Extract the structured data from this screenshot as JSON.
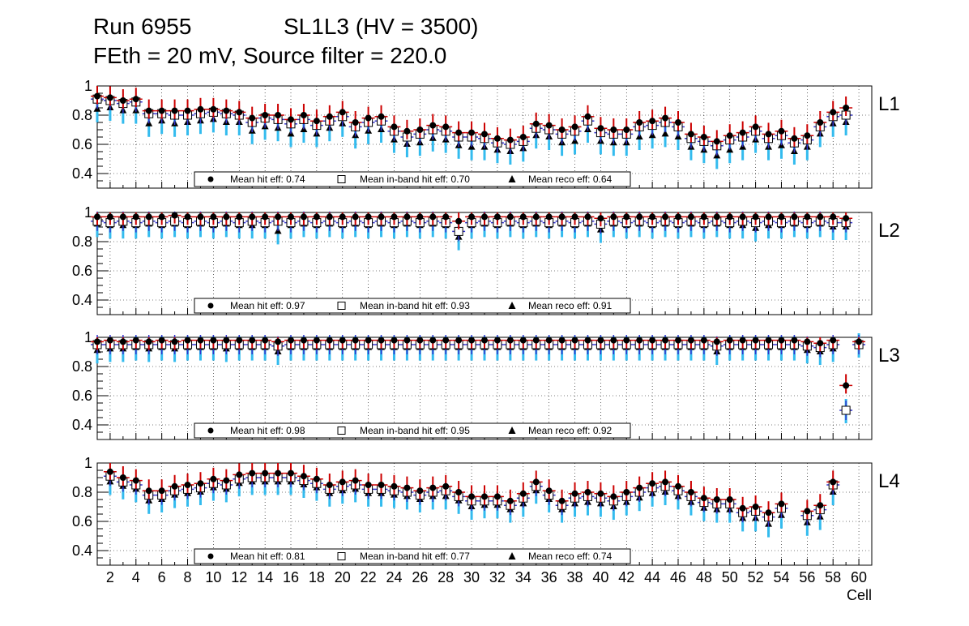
{
  "header": {
    "run": "Run 6955",
    "chamber": "SL1L3 (HV = 3500)",
    "settings": "FEth = 20 mV, Source filter = 220.0"
  },
  "colors": {
    "hit_error": "#cc0000",
    "inband_error": "#3333cc",
    "reco_error": "#33bbee",
    "grid": "#000000",
    "marker": "#000000"
  },
  "chart_data": [
    {
      "type": "scatter",
      "layer": "L1",
      "x_label": "Cell",
      "xlim": [
        1,
        61
      ],
      "ylim": [
        0.3,
        1.0
      ],
      "y_ticks": [
        "0.4",
        "0.6",
        "0.8",
        "1"
      ],
      "legend": {
        "hit": "Mean hit  eff: 0.74",
        "inband": "Mean in-band hit eff: 0.70",
        "reco": "Mean reco eff: 0.64"
      },
      "series": [
        {
          "name": "hit",
          "values": [
            0.93,
            0.92,
            0.9,
            0.91,
            0.83,
            0.83,
            0.83,
            0.83,
            0.84,
            0.84,
            0.83,
            0.82,
            0.78,
            0.8,
            0.8,
            0.77,
            0.8,
            0.76,
            0.79,
            0.82,
            0.75,
            0.78,
            0.79,
            0.72,
            0.69,
            0.7,
            0.73,
            0.72,
            0.68,
            0.68,
            0.67,
            0.64,
            0.63,
            0.65,
            0.74,
            0.73,
            0.7,
            0.72,
            0.79,
            0.71,
            0.7,
            0.7,
            0.75,
            0.76,
            0.78,
            0.75,
            0.67,
            0.65,
            0.62,
            0.66,
            0.68,
            0.72,
            0.67,
            0.69,
            0.64,
            0.66,
            0.75,
            0.82,
            0.85
          ]
        },
        {
          "name": "inband",
          "values": [
            0.91,
            0.9,
            0.88,
            0.89,
            0.81,
            0.81,
            0.8,
            0.8,
            0.81,
            0.82,
            0.81,
            0.8,
            0.75,
            0.78,
            0.77,
            0.74,
            0.77,
            0.73,
            0.76,
            0.79,
            0.72,
            0.75,
            0.76,
            0.69,
            0.65,
            0.67,
            0.7,
            0.69,
            0.65,
            0.65,
            0.64,
            0.61,
            0.6,
            0.62,
            0.71,
            0.7,
            0.67,
            0.69,
            0.76,
            0.68,
            0.67,
            0.67,
            0.72,
            0.73,
            0.75,
            0.72,
            0.64,
            0.62,
            0.59,
            0.63,
            0.65,
            0.69,
            0.64,
            0.66,
            0.61,
            0.63,
            0.72,
            0.79,
            0.8
          ]
        },
        {
          "name": "reco",
          "values": [
            0.84,
            0.85,
            0.83,
            0.83,
            0.74,
            0.76,
            0.74,
            0.75,
            0.76,
            0.77,
            0.75,
            0.75,
            0.69,
            0.72,
            0.71,
            0.67,
            0.7,
            0.67,
            0.71,
            0.74,
            0.66,
            0.69,
            0.7,
            0.63,
            0.6,
            0.61,
            0.64,
            0.63,
            0.59,
            0.58,
            0.58,
            0.56,
            0.55,
            0.57,
            0.66,
            0.65,
            0.61,
            0.62,
            0.7,
            0.62,
            0.61,
            0.61,
            0.65,
            0.66,
            0.67,
            0.65,
            0.58,
            0.56,
            0.52,
            0.56,
            0.58,
            0.63,
            0.58,
            0.59,
            0.55,
            0.58,
            0.67,
            0.74,
            0.75
          ]
        }
      ]
    },
    {
      "type": "scatter",
      "layer": "L2",
      "x_label": "Cell",
      "xlim": [
        1,
        61
      ],
      "ylim": [
        0.3,
        1.0
      ],
      "y_ticks": [
        "0.4",
        "0.6",
        "0.8",
        "1"
      ],
      "legend": {
        "hit": "Mean hit  eff: 0.97",
        "inband": "Mean in-band hit eff: 0.93",
        "reco": "Mean reco eff: 0.91"
      },
      "series": [
        {
          "name": "hit",
          "values": [
            0.97,
            0.97,
            0.97,
            0.97,
            0.97,
            0.97,
            0.98,
            0.97,
            0.97,
            0.97,
            0.97,
            0.97,
            0.97,
            0.97,
            0.97,
            0.97,
            0.97,
            0.97,
            0.97,
            0.97,
            0.97,
            0.97,
            0.97,
            0.97,
            0.97,
            0.97,
            0.97,
            0.97,
            0.94,
            0.97,
            0.97,
            0.97,
            0.97,
            0.97,
            0.97,
            0.97,
            0.97,
            0.97,
            0.97,
            0.96,
            0.97,
            0.97,
            0.97,
            0.97,
            0.97,
            0.97,
            0.97,
            0.97,
            0.97,
            0.97,
            0.97,
            0.97,
            0.97,
            0.97,
            0.97,
            0.97,
            0.97,
            0.97,
            0.96
          ]
        },
        {
          "name": "inband",
          "values": [
            0.94,
            0.93,
            0.94,
            0.93,
            0.94,
            0.93,
            0.94,
            0.93,
            0.94,
            0.93,
            0.94,
            0.93,
            0.94,
            0.93,
            0.94,
            0.93,
            0.94,
            0.93,
            0.94,
            0.93,
            0.94,
            0.93,
            0.94,
            0.93,
            0.94,
            0.93,
            0.94,
            0.93,
            0.87,
            0.93,
            0.94,
            0.93,
            0.94,
            0.93,
            0.94,
            0.93,
            0.94,
            0.93,
            0.94,
            0.92,
            0.94,
            0.93,
            0.94,
            0.93,
            0.94,
            0.93,
            0.94,
            0.93,
            0.94,
            0.93,
            0.94,
            0.93,
            0.94,
            0.93,
            0.94,
            0.93,
            0.94,
            0.93,
            0.93
          ]
        },
        {
          "name": "reco",
          "values": [
            0.92,
            0.91,
            0.91,
            0.91,
            0.92,
            0.91,
            0.92,
            0.91,
            0.92,
            0.91,
            0.92,
            0.91,
            0.91,
            0.91,
            0.87,
            0.91,
            0.92,
            0.91,
            0.92,
            0.91,
            0.92,
            0.91,
            0.92,
            0.91,
            0.92,
            0.91,
            0.92,
            0.91,
            0.83,
            0.91,
            0.92,
            0.91,
            0.92,
            0.91,
            0.92,
            0.91,
            0.92,
            0.91,
            0.92,
            0.88,
            0.92,
            0.91,
            0.92,
            0.91,
            0.92,
            0.91,
            0.92,
            0.91,
            0.92,
            0.91,
            0.91,
            0.89,
            0.91,
            0.91,
            0.92,
            0.91,
            0.92,
            0.9,
            0.9
          ]
        }
      ]
    },
    {
      "type": "scatter",
      "layer": "L3",
      "x_label": "Cell",
      "xlim": [
        1,
        61
      ],
      "ylim": [
        0.3,
        1.0
      ],
      "y_ticks": [
        "0.4",
        "0.6",
        "0.8",
        "1"
      ],
      "legend": {
        "hit": "Mean hit  eff: 0.98",
        "inband": "Mean in-band hit eff: 0.95",
        "reco": "Mean reco eff: 0.92"
      },
      "series": [
        {
          "name": "hit",
          "values": [
            0.97,
            0.98,
            0.97,
            0.98,
            0.97,
            0.98,
            0.97,
            0.98,
            0.98,
            0.98,
            0.98,
            0.98,
            0.98,
            0.98,
            0.97,
            0.98,
            0.98,
            0.98,
            0.98,
            0.98,
            0.98,
            0.98,
            0.98,
            0.98,
            0.98,
            0.98,
            0.98,
            0.98,
            0.98,
            0.98,
            0.98,
            0.98,
            0.98,
            0.98,
            0.98,
            0.98,
            0.98,
            0.98,
            0.98,
            0.98,
            0.98,
            0.98,
            0.98,
            0.98,
            0.98,
            0.98,
            0.98,
            0.98,
            0.97,
            0.98,
            0.98,
            0.98,
            0.98,
            0.98,
            0.98,
            0.97,
            0.96,
            0.98,
            0.67,
            0.97
          ]
        },
        {
          "name": "inband",
          "values": [
            0.95,
            0.95,
            0.95,
            0.95,
            0.95,
            0.95,
            0.95,
            0.95,
            0.95,
            0.95,
            0.95,
            0.95,
            0.95,
            0.95,
            0.94,
            0.95,
            0.95,
            0.95,
            0.95,
            0.95,
            0.95,
            0.95,
            0.95,
            0.95,
            0.95,
            0.95,
            0.95,
            0.95,
            0.95,
            0.95,
            0.95,
            0.95,
            0.95,
            0.95,
            0.95,
            0.95,
            0.95,
            0.95,
            0.95,
            0.95,
            0.95,
            0.95,
            0.95,
            0.95,
            0.95,
            0.95,
            0.95,
            0.95,
            0.94,
            0.95,
            0.95,
            0.95,
            0.95,
            0.95,
            0.95,
            0.94,
            0.93,
            0.95,
            0.5,
            0.95
          ]
        },
        {
          "name": "reco",
          "values": [
            0.91,
            0.92,
            0.92,
            0.93,
            0.92,
            0.93,
            0.92,
            0.93,
            0.93,
            0.93,
            0.92,
            0.93,
            0.93,
            0.93,
            0.9,
            0.93,
            0.93,
            0.93,
            0.93,
            0.93,
            0.93,
            0.93,
            0.93,
            0.93,
            0.93,
            0.93,
            0.93,
            0.93,
            0.93,
            0.93,
            0.93,
            0.93,
            0.93,
            0.93,
            0.93,
            0.93,
            0.93,
            0.93,
            0.93,
            0.93,
            0.93,
            0.93,
            0.93,
            0.93,
            0.93,
            0.93,
            0.93,
            0.93,
            0.9,
            0.93,
            0.93,
            0.93,
            0.93,
            0.93,
            0.93,
            0.91,
            0.9,
            0.92,
            0.5,
            0.95
          ]
        }
      ]
    },
    {
      "type": "scatter",
      "layer": "L4",
      "x_label": "Cell",
      "xlim": [
        1,
        61
      ],
      "ylim": [
        0.3,
        1.0
      ],
      "y_ticks": [
        "0.4",
        "0.6",
        "0.8",
        "1"
      ],
      "legend": {
        "hit": "Mean hit  eff: 0.81",
        "inband": "Mean in-band hit eff: 0.77",
        "reco": "Mean reco eff: 0.74"
      },
      "series": [
        {
          "name": "hit",
          "values": [
            null,
            0.94,
            0.9,
            0.88,
            0.81,
            0.81,
            0.84,
            0.85,
            0.86,
            0.89,
            0.88,
            0.92,
            0.93,
            0.93,
            0.93,
            0.93,
            0.91,
            0.89,
            0.85,
            0.87,
            0.88,
            0.85,
            0.85,
            0.84,
            0.83,
            0.81,
            0.83,
            0.84,
            0.8,
            0.77,
            0.77,
            0.77,
            0.74,
            0.79,
            0.87,
            0.81,
            0.74,
            0.79,
            0.8,
            0.79,
            0.77,
            0.8,
            0.83,
            0.86,
            0.87,
            0.84,
            0.8,
            0.76,
            0.75,
            0.75,
            0.69,
            0.7,
            0.66,
            0.72,
            null,
            0.67,
            0.71,
            0.87,
            null,
            null
          ]
        },
        {
          "name": "inband",
          "values": [
            null,
            0.91,
            0.87,
            0.85,
            0.78,
            0.78,
            0.81,
            0.82,
            0.83,
            0.86,
            0.85,
            0.89,
            0.9,
            0.9,
            0.9,
            0.9,
            0.88,
            0.86,
            0.82,
            0.84,
            0.85,
            0.82,
            0.82,
            0.81,
            0.8,
            0.78,
            0.8,
            0.81,
            0.77,
            0.74,
            0.74,
            0.74,
            0.71,
            0.76,
            0.84,
            0.78,
            0.71,
            0.76,
            0.77,
            0.76,
            0.74,
            0.77,
            0.8,
            0.83,
            0.84,
            0.81,
            0.77,
            0.73,
            0.72,
            0.72,
            0.66,
            0.67,
            0.63,
            0.69,
            null,
            0.64,
            0.68,
            0.85,
            null,
            null
          ]
        },
        {
          "name": "reco",
          "values": [
            null,
            0.87,
            0.84,
            0.82,
            0.74,
            0.75,
            0.78,
            0.79,
            0.8,
            0.83,
            0.82,
            0.86,
            0.87,
            0.87,
            0.87,
            0.87,
            0.85,
            0.83,
            0.79,
            0.81,
            0.82,
            0.79,
            0.79,
            0.78,
            0.77,
            0.75,
            0.77,
            0.77,
            0.74,
            0.7,
            0.71,
            0.71,
            0.68,
            0.72,
            0.81,
            0.75,
            0.68,
            0.72,
            0.73,
            0.72,
            0.7,
            0.73,
            0.76,
            0.79,
            0.8,
            0.77,
            0.73,
            0.69,
            0.68,
            0.68,
            0.62,
            0.62,
            0.58,
            0.64,
            null,
            0.59,
            0.63,
            0.8,
            null,
            null
          ]
        }
      ]
    }
  ],
  "x_axis": {
    "tick_labels": [
      "2",
      "4",
      "6",
      "8",
      "10",
      "12",
      "14",
      "16",
      "18",
      "20",
      "22",
      "24",
      "26",
      "28",
      "30",
      "32",
      "34",
      "36",
      "38",
      "40",
      "42",
      "44",
      "46",
      "48",
      "50",
      "52",
      "54",
      "56",
      "58",
      "60"
    ],
    "title": "Cell"
  }
}
